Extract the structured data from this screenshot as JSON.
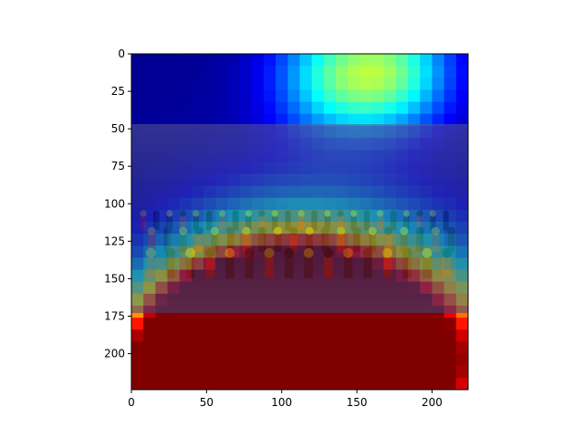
{
  "chart_data": {
    "type": "heatmap",
    "title": "",
    "xlabel": "",
    "ylabel": "",
    "image_size": [
      224,
      224
    ],
    "xlim": [
      0,
      224
    ],
    "ylim": [
      224,
      0
    ],
    "x_ticks": [
      0,
      50,
      100,
      150,
      200
    ],
    "y_ticks": [
      0,
      25,
      50,
      75,
      100,
      125,
      150,
      175,
      200
    ],
    "x_tick_labels": [
      "0",
      "50",
      "100",
      "150",
      "200"
    ],
    "y_tick_labels": [
      "0",
      "25",
      "50",
      "75",
      "100",
      "125",
      "150",
      "175",
      "200"
    ],
    "photo_rows": [
      47,
      173
    ],
    "colormap": "jet",
    "grid": false,
    "legend": "none",
    "hotspots": [
      {
        "x": 80,
        "y": 215,
        "r": 45,
        "intensity": 1.0
      },
      {
        "x": 100,
        "y": 200,
        "r": 55,
        "intensity": 0.85
      },
      {
        "x": 60,
        "y": 205,
        "r": 40,
        "intensity": 0.75
      },
      {
        "x": 125,
        "y": 210,
        "r": 45,
        "intensity": 0.75
      },
      {
        "x": 140,
        "y": 200,
        "r": 50,
        "intensity": 0.55
      },
      {
        "x": 180,
        "y": 200,
        "r": 55,
        "intensity": 0.4
      },
      {
        "x": 210,
        "y": 205,
        "r": 35,
        "intensity": 0.35
      },
      {
        "x": 25,
        "y": 205,
        "r": 30,
        "intensity": 0.4
      },
      {
        "x": 102,
        "y": 168,
        "r": 14,
        "intensity": 0.6
      },
      {
        "x": 135,
        "y": 15,
        "r": 30,
        "intensity": 0.35
      },
      {
        "x": 177,
        "y": 12,
        "r": 28,
        "intensity": 0.35
      }
    ]
  }
}
